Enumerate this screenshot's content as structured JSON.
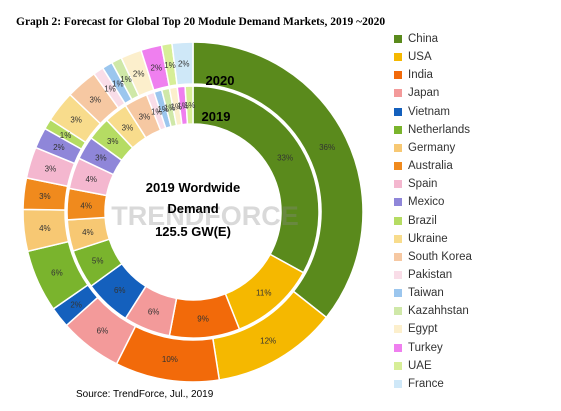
{
  "title": "Graph 2: Forecast for Global  Top 20 Module Demand Markets, 2019 ~2020",
  "source": "Source:  TrendForce,  Jul.,  2019",
  "watermark": "TRENDFORCE",
  "center": {
    "line1": "2019 Wordwide",
    "line2": "Demand",
    "line3": "125.5 GW(E)"
  },
  "chart_data": {
    "type": "donut",
    "legend_position": "right",
    "categories": [
      "China",
      "USA",
      "India",
      "Japan",
      "Vietnam",
      "Netherlands",
      "Germany",
      "Australia",
      "Spain",
      "Mexico",
      "Brazil",
      "Ukraine",
      "South  Korea",
      "Pakistan",
      "Taiwan",
      "Kazahhstan",
      "Egypt",
      "Turkey",
      "UAE",
      "France"
    ],
    "colors": [
      "#5a8a1c",
      "#f5b800",
      "#f26a0a",
      "#f39a9a",
      "#1460bd",
      "#7ab42d",
      "#f7c873",
      "#f08a1d",
      "#f4b7cf",
      "#8f86d9",
      "#b5dc63",
      "#f8dc8c",
      "#f6c8a2",
      "#f9dde8",
      "#9bc6ee",
      "#cfe8a8",
      "#fcefcc",
      "#ef7fef",
      "#d7ee97",
      "#cfe8f8"
    ],
    "series": [
      {
        "name": "2019",
        "values": [
          33,
          11,
          9,
          6,
          6,
          5,
          4,
          4,
          4,
          3,
          3,
          3,
          3,
          1,
          1,
          1,
          1,
          1,
          1,
          0
        ],
        "labels": [
          "33%",
          "11%",
          "9%",
          "6%",
          "6%",
          "5%",
          "4%",
          "4%",
          "4%",
          "3%",
          "3%",
          "3%",
          "3%",
          "1%",
          "1%",
          "1%",
          "1%",
          "1%",
          "1%",
          ""
        ]
      },
      {
        "name": "2020",
        "values": [
          36,
          12,
          10,
          6,
          2,
          6,
          4,
          3,
          3,
          2,
          1,
          3,
          3,
          1,
          1,
          1,
          2,
          2,
          1,
          2
        ],
        "labels": [
          "36%",
          "12%",
          "10%",
          "6%",
          "2%",
          "6%",
          "4%",
          "3%",
          "3%",
          "2%",
          "1%",
          "3%",
          "3%",
          "1%",
          "1%",
          "1%",
          "2%",
          "2%",
          "1%",
          "2%"
        ]
      }
    ]
  }
}
